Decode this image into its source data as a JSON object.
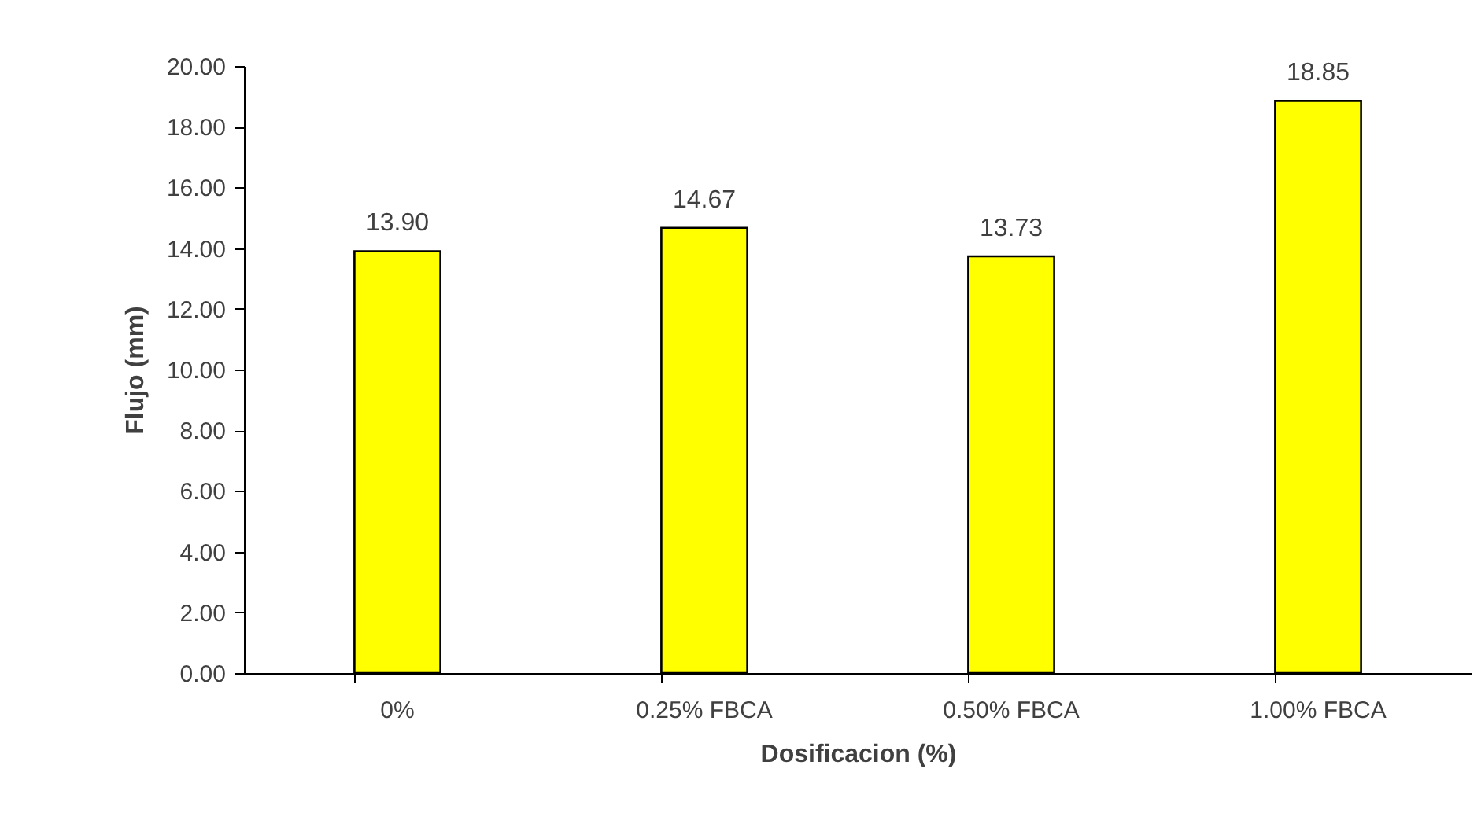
{
  "chart_data": {
    "type": "bar",
    "xlabel": "Dosificacion (%)",
    "ylabel": "Flujo (mm)",
    "categories": [
      "0%",
      "0.25% FBCA",
      "0.50% FBCA",
      "1.00% FBCA"
    ],
    "values": [
      13.9,
      14.67,
      13.73,
      18.85
    ],
    "value_labels": [
      "13.90",
      "14.67",
      "13.73",
      "18.85"
    ],
    "color": "#ffff00",
    "ylim": [
      0,
      20
    ],
    "yticks": [
      {
        "value": 0,
        "label": "0.00"
      },
      {
        "value": 2,
        "label": "2.00"
      },
      {
        "value": 4,
        "label": "4.00"
      },
      {
        "value": 6,
        "label": "6.00"
      },
      {
        "value": 8,
        "label": "8.00"
      },
      {
        "value": 10,
        "label": "10.00"
      },
      {
        "value": 12,
        "label": "12.00"
      },
      {
        "value": 14,
        "label": "14.00"
      },
      {
        "value": 16,
        "label": "16.00"
      },
      {
        "value": 18,
        "label": "18.00"
      },
      {
        "value": 20,
        "label": "20.00"
      }
    ],
    "grid": false
  }
}
